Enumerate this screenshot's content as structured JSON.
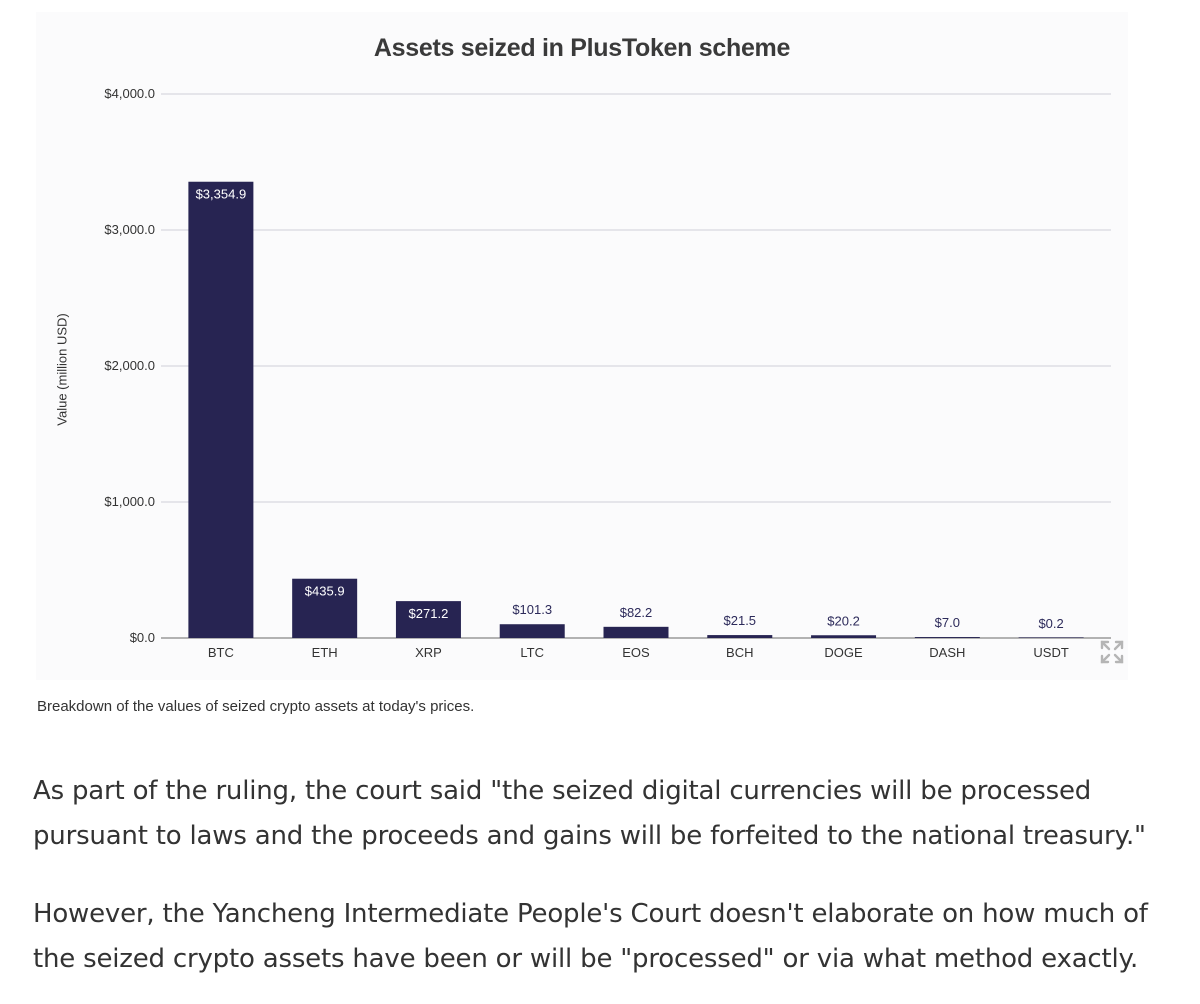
{
  "chart_data": {
    "type": "bar",
    "title": "Assets seized in PlusToken scheme",
    "xlabel": "",
    "ylabel": "Value (million USD)",
    "categories": [
      "BTC",
      "ETH",
      "XRP",
      "LTC",
      "EOS",
      "BCH",
      "DOGE",
      "DASH",
      "USDT"
    ],
    "values": [
      3354.9,
      435.9,
      271.2,
      101.3,
      82.2,
      21.5,
      20.2,
      7.0,
      0.2
    ],
    "data_labels": [
      "$3,354.9",
      "$435.9",
      "$271.2",
      "$101.3",
      "$82.2",
      "$21.5",
      "$20.2",
      "$7.0",
      "$0.2"
    ],
    "ylim": [
      0,
      4000
    ],
    "yticks": [
      0,
      1000,
      2000,
      3000,
      4000
    ],
    "ytick_labels": [
      "$0.0",
      "$1,000.0",
      "$2,000.0",
      "$3,000.0",
      "$4,000.0"
    ],
    "grid": true,
    "legend": "none",
    "bar_color": "#272452",
    "grid_color": "#dedee3",
    "axis_color": "#9a9a9a"
  },
  "icons": {
    "expand": "expand-icon"
  },
  "caption": "Breakdown of the values of seized crypto assets at today's prices.",
  "paragraphs": [
    "As part of the ruling, the court said \"the seized digital currencies will be processed pursuant to laws and the proceeds and gains will be forfeited to the national treasury.\"",
    "However, the Yancheng Intermediate People's Court doesn't elaborate on how much of the seized crypto assets have been or will be \"processed\" or via what method exactly."
  ]
}
